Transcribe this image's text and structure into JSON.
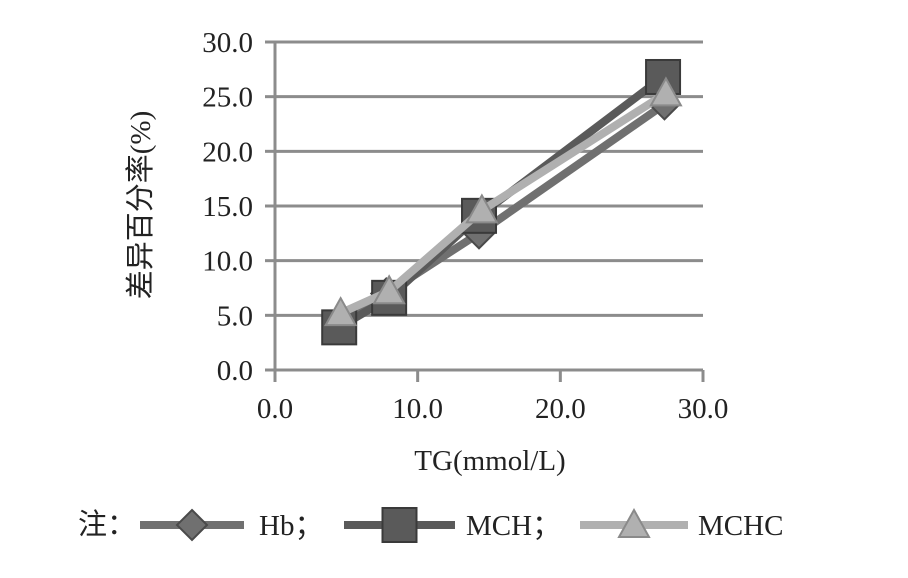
{
  "chart_data": {
    "type": "line",
    "title": "",
    "xlabel": "TG(mmol/L)",
    "ylabel": "差异百分率(%)",
    "xlim": [
      0,
      30
    ],
    "ylim": [
      0,
      30
    ],
    "x_ticks": [
      0,
      10,
      20,
      30
    ],
    "x_tick_labels": [
      "0.0",
      "10.0",
      "20.0",
      "30.0"
    ],
    "y_ticks": [
      0,
      5,
      10,
      15,
      20,
      25,
      30
    ],
    "y_tick_labels": [
      "0.0",
      "5.0",
      "10.0",
      "15.0",
      "20.0",
      "25.0",
      "30.0"
    ],
    "grid": {
      "horizontal": true,
      "vertical": false
    },
    "legend_position": "bottom",
    "legend_prefix": "注：",
    "series": [
      {
        "name": "Hb",
        "legend_label": "Hb；",
        "marker": "diamond",
        "color": "#707070",
        "x": [
          4.6,
          7.8,
          14.3,
          27.3
        ],
        "y": [
          4.3,
          7.0,
          12.5,
          24.3
        ]
      },
      {
        "name": "MCH",
        "legend_label": "MCH；",
        "marker": "square",
        "color": "#5a5a5a",
        "x": [
          4.5,
          8.0,
          14.3,
          27.2
        ],
        "y": [
          3.9,
          6.6,
          14.1,
          26.8
        ]
      },
      {
        "name": "MCHC",
        "legend_label": "MCHC",
        "marker": "triangle",
        "color": "#b0b0b0",
        "x": [
          4.6,
          8.0,
          14.5,
          27.4
        ],
        "y": [
          5.2,
          7.2,
          14.6,
          25.3
        ]
      }
    ]
  }
}
